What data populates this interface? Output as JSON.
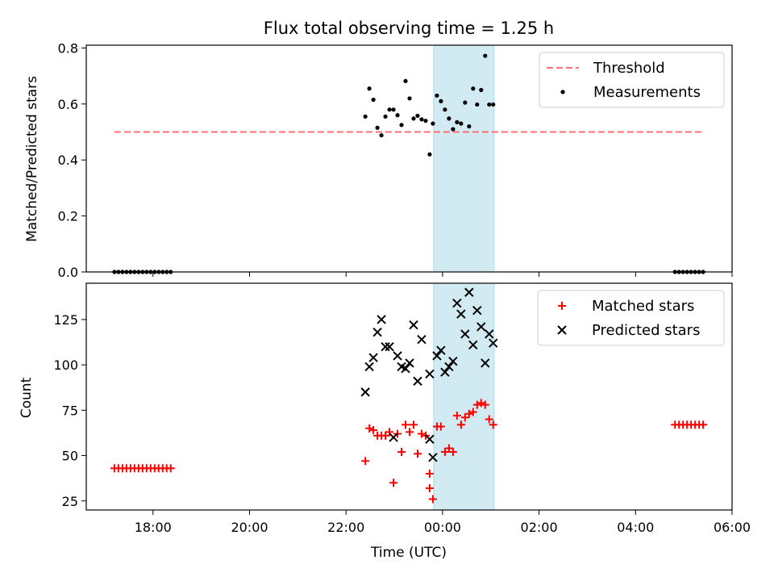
{
  "title": "Flux total observing time = 1.25 h",
  "chart_data": {
    "type": "scatter",
    "x_unit_note": "time of night, UTC",
    "xlabel": "Time (UTC)",
    "xlim": [
      "16:37",
      "06:00"
    ],
    "x_ticks": [
      "18:00",
      "20:00",
      "22:00",
      "00:00",
      "02:00",
      "04:00",
      "06:00"
    ],
    "highlight_span": {
      "start": "23:49",
      "end": "01:04"
    },
    "top": {
      "ylabel": "Matched/Predicted stars",
      "ylim": [
        0,
        0.81
      ],
      "y_ticks": [
        "0.0",
        "0.2",
        "0.4",
        "0.6",
        "0.8"
      ],
      "threshold": {
        "name": "Threshold",
        "value": 0.5,
        "x_start": "17:12",
        "x_end": "05:24"
      },
      "series": [
        {
          "name": "Measurements",
          "points": [
            [
              "17:12",
              0
            ],
            [
              "17:17",
              0
            ],
            [
              "17:22",
              0
            ],
            [
              "17:27",
              0
            ],
            [
              "17:32",
              0
            ],
            [
              "17:37",
              0
            ],
            [
              "17:42",
              0
            ],
            [
              "17:47",
              0
            ],
            [
              "17:52",
              0
            ],
            [
              "17:57",
              0
            ],
            [
              "18:02",
              0
            ],
            [
              "18:07",
              0
            ],
            [
              "18:12",
              0
            ],
            [
              "18:17",
              0
            ],
            [
              "18:22",
              0
            ],
            [
              "22:24",
              0.555
            ],
            [
              "22:29",
              0.655
            ],
            [
              "22:34",
              0.615
            ],
            [
              "22:39",
              0.515
            ],
            [
              "22:44",
              0.488
            ],
            [
              "22:49",
              0.555
            ],
            [
              "22:54",
              0.58
            ],
            [
              "22:59",
              0.58
            ],
            [
              "23:04",
              0.56
            ],
            [
              "23:09",
              0.525
            ],
            [
              "23:14",
              0.682
            ],
            [
              "23:19",
              0.62
            ],
            [
              "23:24",
              0.548
            ],
            [
              "23:29",
              0.558
            ],
            [
              "23:34",
              0.545
            ],
            [
              "23:39",
              0.54
            ],
            [
              "23:44",
              0.42
            ],
            [
              "23:48",
              0.53
            ],
            [
              "23:53",
              0.63
            ],
            [
              "23:58",
              0.61
            ],
            [
              "00:03",
              0.58
            ],
            [
              "00:08",
              0.548
            ],
            [
              "00:13",
              0.51
            ],
            [
              "00:18",
              0.535
            ],
            [
              "00:23",
              0.53
            ],
            [
              "00:28",
              0.605
            ],
            [
              "00:33",
              0.52
            ],
            [
              "00:38",
              0.655
            ],
            [
              "00:43",
              0.598
            ],
            [
              "00:48",
              0.65
            ],
            [
              "00:53",
              0.772
            ],
            [
              "00:58",
              0.598
            ],
            [
              "01:03",
              0.598
            ],
            [
              "04:49",
              0
            ],
            [
              "04:54",
              0
            ],
            [
              "04:59",
              0
            ],
            [
              "05:04",
              0
            ],
            [
              "05:09",
              0
            ],
            [
              "05:14",
              0
            ],
            [
              "05:19",
              0
            ],
            [
              "05:24",
              0
            ]
          ]
        }
      ]
    },
    "bottom": {
      "ylabel": "Count",
      "ylim": [
        20,
        145
      ],
      "y_ticks": [
        "25",
        "50",
        "75",
        "100",
        "125"
      ],
      "series": [
        {
          "name": "Matched stars",
          "points": [
            [
              "17:12",
              43
            ],
            [
              "17:17",
              43
            ],
            [
              "17:22",
              43
            ],
            [
              "17:27",
              43
            ],
            [
              "17:32",
              43
            ],
            [
              "17:37",
              43
            ],
            [
              "17:42",
              43
            ],
            [
              "17:47",
              43
            ],
            [
              "17:52",
              43
            ],
            [
              "17:57",
              43
            ],
            [
              "18:02",
              43
            ],
            [
              "18:07",
              43
            ],
            [
              "18:12",
              43
            ],
            [
              "18:17",
              43
            ],
            [
              "18:22",
              43
            ],
            [
              "22:24",
              47
            ],
            [
              "22:29",
              65
            ],
            [
              "22:34",
              64
            ],
            [
              "22:39",
              61
            ],
            [
              "22:44",
              61
            ],
            [
              "22:49",
              61
            ],
            [
              "22:54",
              63
            ],
            [
              "22:59",
              35
            ],
            [
              "23:04",
              62
            ],
            [
              "23:09",
              52
            ],
            [
              "23:14",
              67
            ],
            [
              "23:19",
              63
            ],
            [
              "23:24",
              67
            ],
            [
              "23:29",
              51
            ],
            [
              "23:34",
              62
            ],
            [
              "23:39",
              61
            ],
            [
              "23:44",
              32
            ],
            [
              "23:44",
              40
            ],
            [
              "23:48",
              26
            ],
            [
              "23:53",
              66
            ],
            [
              "23:58",
              66
            ],
            [
              "00:03",
              52
            ],
            [
              "00:08",
              54
            ],
            [
              "00:13",
              52
            ],
            [
              "00:18",
              72
            ],
            [
              "00:23",
              67
            ],
            [
              "00:28",
              71
            ],
            [
              "00:33",
              73
            ],
            [
              "00:38",
              74
            ],
            [
              "00:43",
              78
            ],
            [
              "00:48",
              79
            ],
            [
              "00:53",
              78
            ],
            [
              "00:58",
              70
            ],
            [
              "01:03",
              67
            ],
            [
              "04:49",
              67
            ],
            [
              "04:54",
              67
            ],
            [
              "04:59",
              67
            ],
            [
              "05:04",
              67
            ],
            [
              "05:09",
              67
            ],
            [
              "05:14",
              67
            ],
            [
              "05:19",
              67
            ],
            [
              "05:24",
              67
            ]
          ]
        },
        {
          "name": "Predicted stars",
          "points": [
            [
              "22:24",
              85
            ],
            [
              "22:29",
              99
            ],
            [
              "22:34",
              104
            ],
            [
              "22:39",
              118
            ],
            [
              "22:44",
              125
            ],
            [
              "22:49",
              110
            ],
            [
              "22:54",
              110
            ],
            [
              "22:59",
              60
            ],
            [
              "23:04",
              105
            ],
            [
              "23:09",
              99
            ],
            [
              "23:14",
              98
            ],
            [
              "23:19",
              101
            ],
            [
              "23:24",
              122
            ],
            [
              "23:29",
              91
            ],
            [
              "23:34",
              114
            ],
            [
              "23:44",
              95
            ],
            [
              "23:44",
              59
            ],
            [
              "23:48",
              49
            ],
            [
              "23:53",
              105
            ],
            [
              "23:58",
              108
            ],
            [
              "00:03",
              96
            ],
            [
              "00:08",
              99
            ],
            [
              "00:13",
              102
            ],
            [
              "00:18",
              134
            ],
            [
              "00:23",
              128
            ],
            [
              "00:28",
              117
            ],
            [
              "00:33",
              140
            ],
            [
              "00:38",
              111
            ],
            [
              "00:43",
              130
            ],
            [
              "00:48",
              121
            ],
            [
              "00:53",
              101
            ],
            [
              "00:58",
              117
            ],
            [
              "01:03",
              112
            ]
          ]
        }
      ]
    },
    "legend_placement": "top-right"
  },
  "colors": {
    "threshold": "#ff7070",
    "measurements": "#000000",
    "matched": "#ff0000",
    "predicted": "#000000",
    "span": "#add8e6"
  }
}
